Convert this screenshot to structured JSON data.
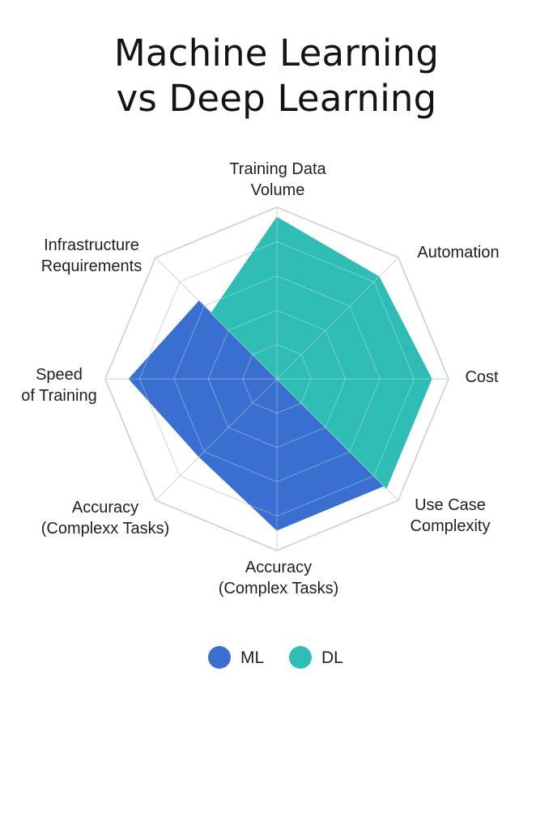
{
  "chart_data": {
    "type": "radar",
    "title": [
      "Machine Learning",
      "vs Deep Learning"
    ],
    "axes": [
      {
        "label": [
          "Training Data",
          "Volume"
        ]
      },
      {
        "label": [
          "Automation"
        ]
      },
      {
        "label": [
          "Cost"
        ]
      },
      {
        "label": [
          "Use Case",
          "Complexity"
        ]
      },
      {
        "label": [
          "Accuracy",
          "(Complex Tasks)"
        ]
      },
      {
        "label": [
          "Accuracy",
          "(Complexx Tasks)"
        ]
      },
      {
        "label": [
          "Speed",
          "of Training"
        ]
      },
      {
        "label": [
          "Infrastructure",
          "Requirements"
        ]
      }
    ],
    "rings": 5,
    "max": 5,
    "series": [
      {
        "name": "ML",
        "color": "#3a6fcf",
        "values": [
          0,
          0,
          0,
          4.4,
          4.4,
          3.2,
          4.3,
          3.2
        ]
      },
      {
        "name": "DL",
        "color": "#2fbcb4",
        "values": [
          4.7,
          4.2,
          4.5,
          4.5,
          0,
          0,
          0,
          2.7
        ]
      }
    ],
    "legend": {
      "position": "bottom-center"
    }
  }
}
